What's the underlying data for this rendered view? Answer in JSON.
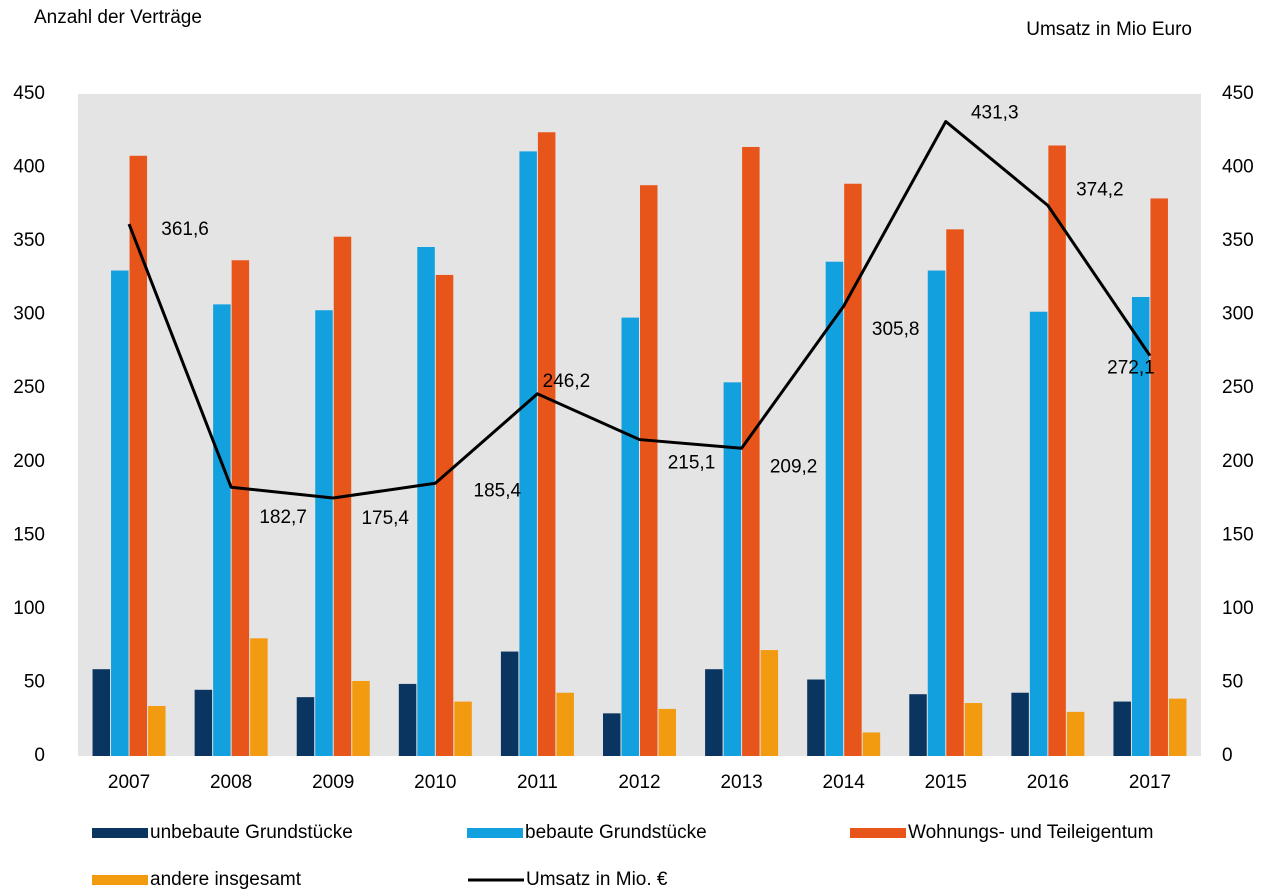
{
  "chart_data": {
    "type": "bar",
    "y_label": "Anzahl der Verträge",
    "y2_label": "Umsatz in Mio Euro",
    "categories": [
      "2007",
      "2008",
      "2009",
      "2010",
      "2011",
      "2012",
      "2013",
      "2014",
      "2015",
      "2016",
      "2017"
    ],
    "series": [
      {
        "name": "unbebaute Grundstücke",
        "color": "#0b3561",
        "values": [
          59,
          45,
          40,
          49,
          71,
          29,
          59,
          52,
          42,
          43,
          37
        ]
      },
      {
        "name": "bebaute Grundstücke",
        "color": "#12a0de",
        "values": [
          330,
          307,
          303,
          346,
          411,
          298,
          254,
          336,
          330,
          302,
          312
        ]
      },
      {
        "name": "Wohnungs- und Teileigentum",
        "color": "#e8551b",
        "values": [
          408,
          337,
          353,
          327,
          424,
          388,
          414,
          389,
          358,
          415,
          379
        ]
      },
      {
        "name": "andere insgesamt",
        "color": "#f29a10",
        "values": [
          34,
          80,
          51,
          37,
          43,
          32,
          72,
          16,
          36,
          30,
          39
        ]
      },
      {
        "name": "Umsatz in Mio. €",
        "color": "#000000",
        "type": "line",
        "axis": "y2",
        "values": [
          361.6,
          182.7,
          175.4,
          185.4,
          246.2,
          215.1,
          209.2,
          305.8,
          431.3,
          374.2,
          272.1
        ],
        "value_labels": [
          "361,6",
          "182,7",
          "175,4",
          "185,4",
          "246,2",
          "215,1",
          "209,2",
          "305,8",
          "431,3",
          "374,2",
          "272,1"
        ]
      }
    ],
    "ylim": [
      0,
      450
    ],
    "yticks": [
      0,
      50,
      100,
      150,
      200,
      250,
      300,
      350,
      400,
      450
    ],
    "y2lim": [
      0,
      450
    ],
    "y2ticks": [
      0,
      50,
      100,
      150,
      200,
      250,
      300,
      350,
      400,
      450
    ],
    "grid": false,
    "plot_background": "#e4e4e4"
  }
}
